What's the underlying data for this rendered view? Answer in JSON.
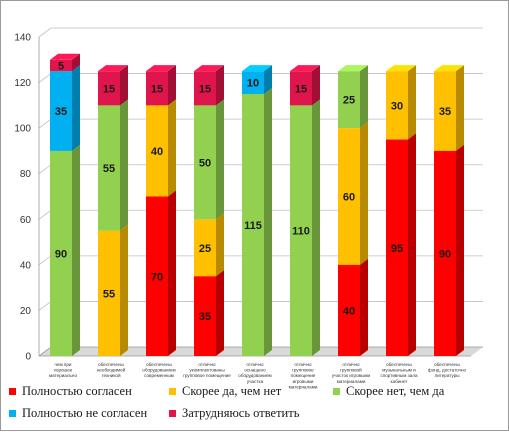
{
  "chart_data": {
    "type": "bar",
    "stacked": true,
    "categories": [
      [
        "чем при",
        "хорошее",
        "материально"
      ],
      [
        "обеспечены",
        "необходимой",
        "техникой"
      ],
      [
        "обеспечены",
        "оборудованием",
        "современным"
      ],
      [
        "отлично",
        "укомплектованы",
        "групповое помещение"
      ],
      [
        "отлично",
        "оснащено",
        "оборудованием",
        "участка"
      ],
      [
        "отлично",
        "групповое",
        "помещение",
        "игровыми",
        "материалами"
      ],
      [
        "отлично",
        "групповой",
        "участок игровыми",
        "материалами"
      ],
      [
        "обеспечены",
        "музыкальным и",
        "спортивным зала",
        "кабинет"
      ],
      [
        "обеспечены",
        "фонд, достаточно",
        "литературы"
      ]
    ],
    "series": [
      {
        "name": "Полностью согласен",
        "color": "#ff0000",
        "values": [
          0,
          0,
          70,
          35,
          0,
          0,
          40,
          95,
          90
        ]
      },
      {
        "name": "Скорее да, чем нет",
        "color": "#ffc000",
        "values": [
          0,
          55,
          40,
          25,
          0,
          0,
          60,
          30,
          35
        ]
      },
      {
        "name": "Скорее нет, чем да",
        "color": "#92d050",
        "values": [
          90,
          55,
          0,
          50,
          115,
          110,
          25,
          0,
          0
        ]
      },
      {
        "name": "Полностью не согласен",
        "color": "#00b0f0",
        "values": [
          35,
          0,
          0,
          0,
          10,
          0,
          0,
          0,
          0
        ]
      },
      {
        "name": "Затрудняюсь ответить",
        "color": "#e0154b",
        "values": [
          5,
          15,
          15,
          15,
          0,
          15,
          0,
          0,
          0
        ]
      }
    ],
    "ylim": [
      0,
      140
    ],
    "yticks": [
      0,
      20,
      40,
      60,
      80,
      100,
      120,
      140
    ],
    "grid": true,
    "legend_position": "bottom"
  }
}
